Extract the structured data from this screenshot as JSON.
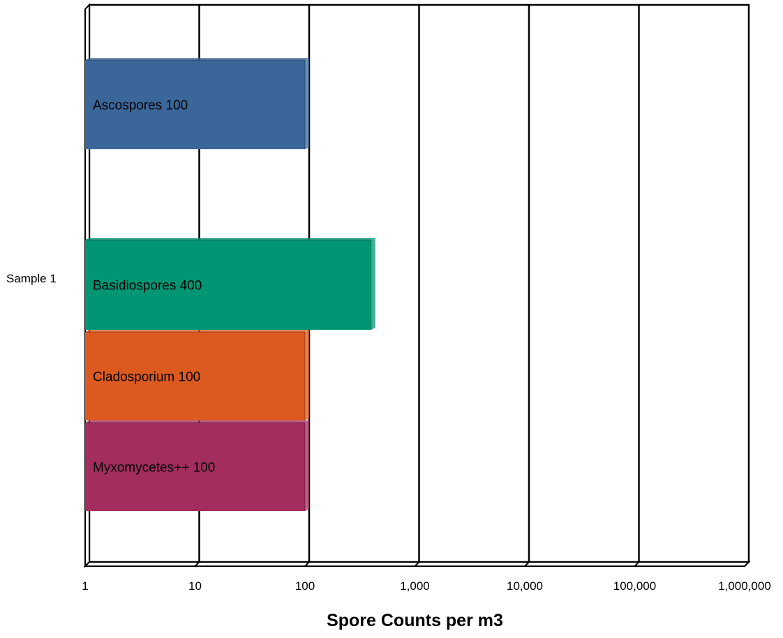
{
  "chart_data": {
    "type": "bar",
    "orientation": "horizontal",
    "x_scale": "log",
    "xlim": [
      1,
      1000000
    ],
    "xlabel": "Spore Counts per m3",
    "ylabel": "",
    "title": "",
    "grid": true,
    "categories": [
      "Sample 1"
    ],
    "x_tick_labels": [
      "1",
      "10",
      "100",
      "1,000",
      "10,000",
      "100,000",
      "1,000,000"
    ],
    "x_tick_values": [
      1,
      10,
      100,
      1000,
      10000,
      100000,
      1000000
    ],
    "series": [
      {
        "label": "Ascospores 100",
        "values": [
          100
        ],
        "color": "#3A6699"
      },
      {
        "label": "Basidiospores 400",
        "values": [
          400
        ],
        "color": "#009673"
      },
      {
        "label": "Cladosporium 100",
        "values": [
          100
        ],
        "color": "#DC5A20"
      },
      {
        "label": "Myxomycetes++ 100",
        "values": [
          100
        ],
        "color": "#A22D5E"
      }
    ]
  }
}
